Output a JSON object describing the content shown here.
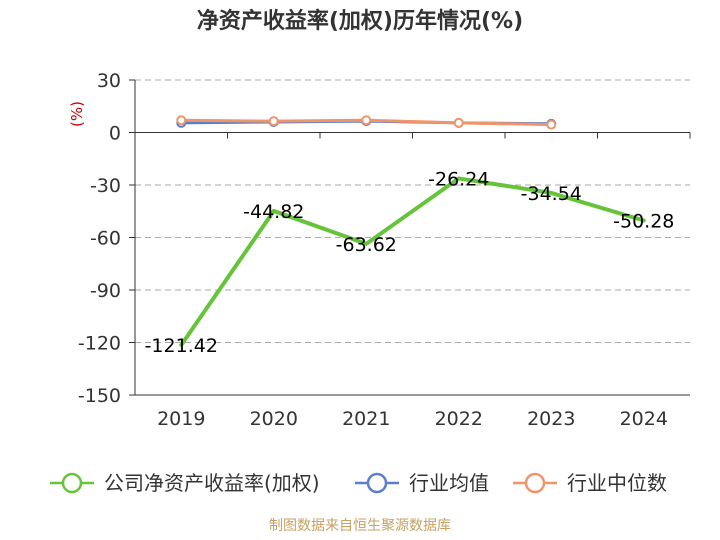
{
  "chart_data": {
    "type": "line",
    "title": "净资产收益率(加权)历年情况(%)",
    "ylabel": "(%)",
    "xlabel": "",
    "categories": [
      "2019",
      "2020",
      "2021",
      "2022",
      "2023",
      "2024"
    ],
    "ylim": [
      -150,
      30
    ],
    "yticks": [
      30,
      0,
      -30,
      -60,
      -90,
      -120,
      -150
    ],
    "grid": true,
    "legend_position": "bottom",
    "series": [
      {
        "name": "公司净资产收益率(加权)",
        "color": "#66c43a",
        "values": [
          -121.42,
          -44.82,
          -63.62,
          -26.24,
          -34.54,
          -50.28
        ],
        "labels": [
          "-121.42",
          "-44.82",
          "-63.62",
          "-26.24",
          "-34.54",
          "-50.28"
        ]
      },
      {
        "name": "行业均值",
        "color": "#5b7fcf",
        "values": [
          5.5,
          6.0,
          6.5,
          5.5,
          5.0,
          null
        ]
      },
      {
        "name": "行业中位数",
        "color": "#f0956a",
        "values": [
          7.0,
          6.5,
          7.0,
          5.5,
          4.5,
          null
        ]
      }
    ]
  },
  "source": "制图数据来自恒生聚源数据库"
}
